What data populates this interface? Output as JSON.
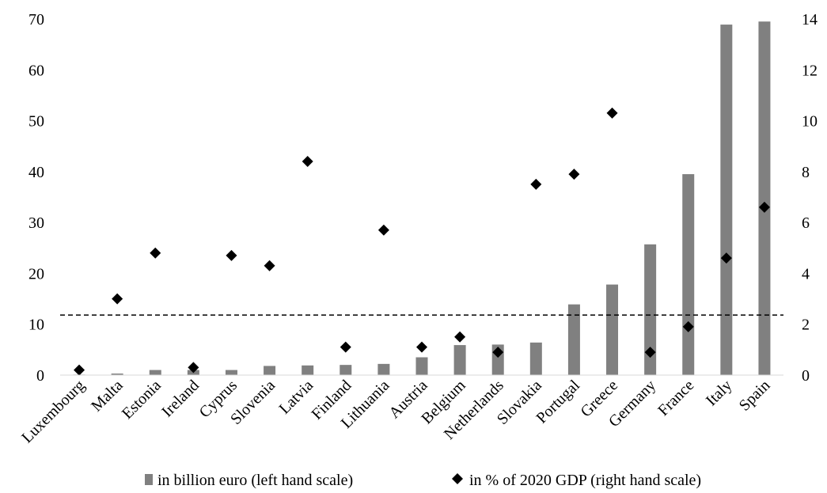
{
  "chart_data": {
    "type": "bar",
    "categories": [
      "Luxembourg",
      "Malta",
      "Estonia",
      "Ireland",
      "Cyprus",
      "Slovenia",
      "Latvia",
      "Finland",
      "Lithuania",
      "Austria",
      "Belgium",
      "Netherlands",
      "Slovakia",
      "Portugal",
      "Greece",
      "Germany",
      "France",
      "Italy",
      "Spain"
    ],
    "series": [
      {
        "name": "in billion euro (left hand scale)",
        "type": "bar",
        "axis": "left",
        "color": "#808080",
        "values": [
          0.1,
          0.3,
          1.0,
          1.0,
          1.0,
          1.8,
          1.9,
          2.0,
          2.2,
          3.5,
          5.9,
          6.0,
          6.4,
          13.9,
          17.8,
          25.7,
          39.5,
          68.9,
          69.5
        ]
      },
      {
        "name": "in % of 2020 GDP (right hand scale)",
        "type": "scatter",
        "marker": "diamond",
        "axis": "right",
        "color": "#000000",
        "values": [
          0.2,
          3.0,
          4.8,
          0.3,
          4.7,
          4.3,
          8.4,
          1.1,
          5.7,
          1.1,
          1.5,
          0.9,
          7.5,
          7.9,
          10.3,
          0.9,
          1.9,
          4.6,
          6.6
        ]
      }
    ],
    "reference_line": {
      "axis": "left",
      "value": 11.8,
      "style": "dashed"
    },
    "y_left": {
      "min": 0,
      "max": 70,
      "ticks": [
        0,
        10,
        20,
        30,
        40,
        50,
        60,
        70
      ]
    },
    "y_right": {
      "min": 0,
      "max": 14,
      "ticks": [
        0,
        2,
        4,
        6,
        8,
        10,
        12,
        14
      ]
    },
    "grid": false,
    "legend_position": "bottom"
  }
}
